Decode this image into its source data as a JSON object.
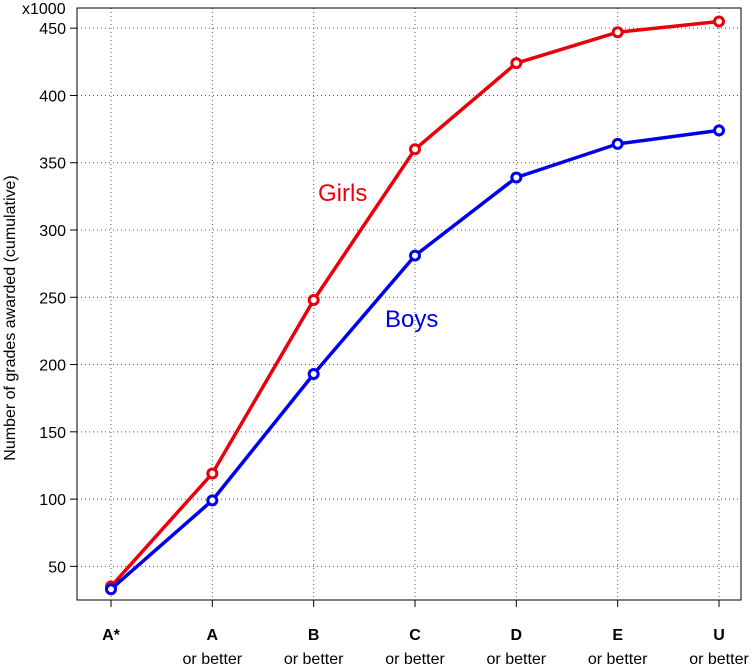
{
  "chart_data": {
    "type": "line",
    "multiplier_label": "x1000",
    "ylabel": "Number of grades awarded (cumulative)",
    "xlabel": "",
    "ylim": [
      25,
      465
    ],
    "yticks": [
      50,
      100,
      150,
      200,
      250,
      300,
      350,
      400,
      450
    ],
    "grid": true,
    "categories": [
      {
        "main": "A*",
        "sub": ""
      },
      {
        "main": "A",
        "sub": "or better"
      },
      {
        "main": "B",
        "sub": "or better"
      },
      {
        "main": "C",
        "sub": "or better"
      },
      {
        "main": "D",
        "sub": "or better"
      },
      {
        "main": "E",
        "sub": "or better"
      },
      {
        "main": "U",
        "sub": "or better"
      }
    ],
    "series": [
      {
        "name": "Girls",
        "color": "#e8000b",
        "values": [
          35,
          119,
          248,
          360,
          424,
          447,
          455
        ]
      },
      {
        "name": "Boys",
        "color": "#0000e8",
        "values": [
          33,
          99,
          193,
          281,
          339,
          364,
          374
        ]
      }
    ]
  }
}
